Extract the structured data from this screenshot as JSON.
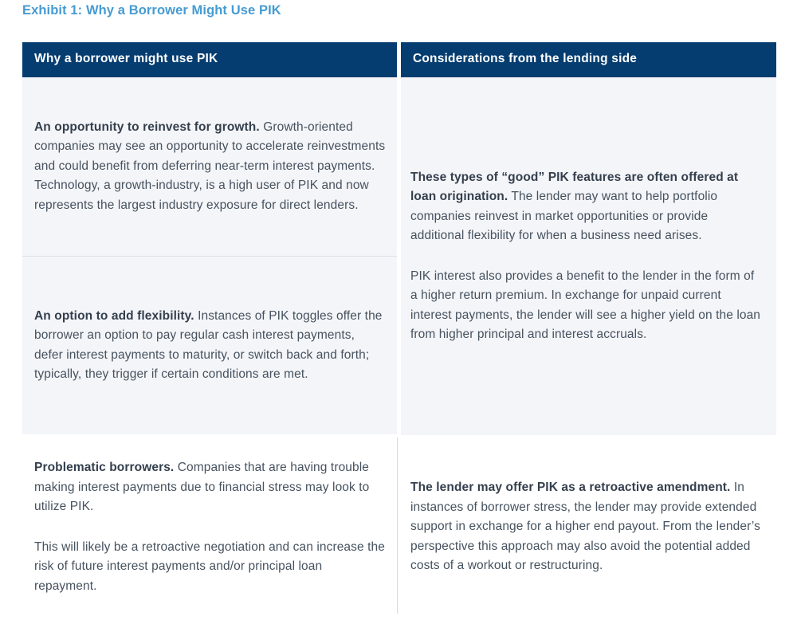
{
  "exhibit_title": "Exhibit 1: Why a Borrower Might Use PIK",
  "colors": {
    "title_blue": "#469BD2",
    "header_navy": "#053D70",
    "header_text": "#FFFFFF",
    "cell_background": "#F4F5F8",
    "body_text": "#46525F",
    "bold_text": "#343F4D",
    "row_divider": "#DCDFE6",
    "column_divider": "#D6DADF"
  },
  "table": {
    "header": {
      "left": "Why a borrower might use PIK",
      "right": "Considerations from the lending side"
    },
    "borrower_column": {
      "row1": {
        "lead": "An opportunity to reinvest for growth.",
        "rest": " Growth-oriented companies may see an opportunity to accelerate reinvestments and could benefit from deferring near-term interest payments. Technology, a growth-industry, is a high user of PIK and now represents the largest industry exposure for direct lenders."
      },
      "row2": {
        "lead": "An option to add flexibility.",
        "rest": " Instances of PIK toggles offer the borrower an option to pay regular cash interest payments, defer interest payments to maturity, or switch back and forth; typically, they trigger if certain conditions are met."
      },
      "row3": {
        "lead": "Problematic borrowers.",
        "rest": " Companies that are having trouble making interest payments due to financial stress may look to utilize PIK.",
        "para2": "This will likely be a retroactive negotiation and can increase the risk of future interest payments and/or principal loan repayment."
      }
    },
    "lender_column": {
      "row1": {
        "lead": "These types of “good” PIK features are often offered at loan origination.",
        "rest": " The lender may want to help portfolio companies reinvest in market opportunities or provide additional flexibility for when a business need arises.",
        "para2": "PIK interest also provides a benefit to the lender in the form of a higher return premium. In exchange for unpaid current interest payments, the lender will see a higher yield on the loan from higher principal and interest accruals."
      },
      "row2": {
        "lead": "The lender may offer PIK as a retroactive amendment.",
        "rest": " In instances of borrower stress, the lender may provide extended support in exchange for a higher end payout. From the lender’s perspective this approach may also avoid the potential added costs of a workout or restructuring."
      }
    }
  }
}
